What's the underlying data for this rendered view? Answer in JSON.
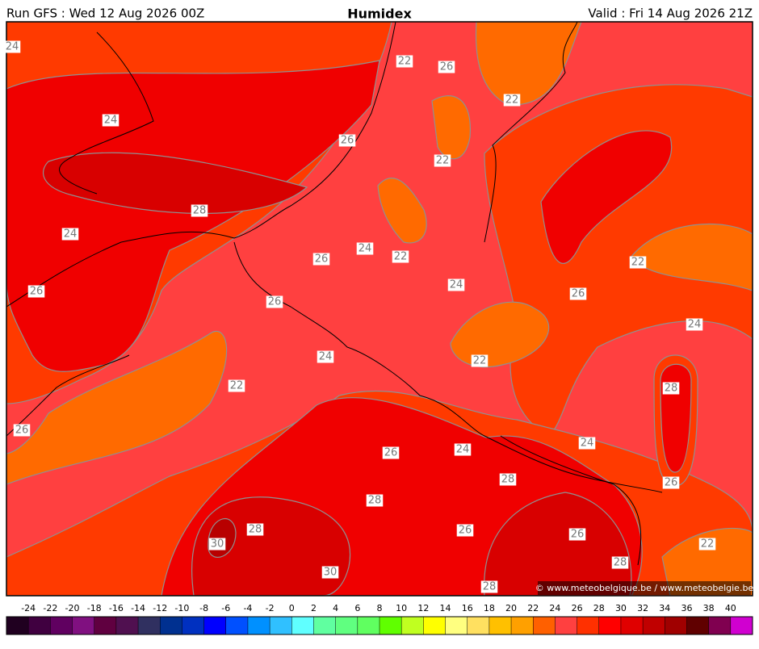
{
  "header": {
    "run": "Run GFS : Wed 12 Aug 2026 00Z",
    "title": "Humidex",
    "valid": "Valid : Fri 14 Aug 2026 21Z"
  },
  "contour_labels": [
    24,
    22,
    26,
    22,
    24,
    26,
    22,
    28,
    24,
    24,
    26,
    22,
    22,
    24,
    26,
    26,
    26,
    24,
    24,
    22,
    22,
    28,
    26,
    24,
    24,
    26,
    28,
    26,
    28,
    28,
    26,
    26,
    30,
    22,
    28,
    30,
    28
  ],
  "legend": {
    "ticks": [
      -24,
      -22,
      -20,
      -18,
      -16,
      -14,
      -12,
      -10,
      -8,
      -6,
      -4,
      -2,
      0,
      2,
      4,
      6,
      8,
      10,
      12,
      14,
      16,
      18,
      20,
      22,
      24,
      26,
      28,
      30,
      32,
      34,
      36,
      38,
      40
    ],
    "colors": [
      "#200020",
      "#400040",
      "#600060",
      "#801080",
      "#600040",
      "#501050",
      "#303060",
      "#003090",
      "#0030c0",
      "#0000ff",
      "#0050ff",
      "#0090ff",
      "#30c0ff",
      "#60ffff",
      "#60ffa0",
      "#60ff80",
      "#60ff60",
      "#60ff00",
      "#c0ff20",
      "#ffff00",
      "#ffff80",
      "#ffe060",
      "#ffc000",
      "#ffa000",
      "#ff6000",
      "#ff4040",
      "#ff3000",
      "#ff0000",
      "#e00000",
      "#c00000",
      "#a00000",
      "#600000",
      "#800050",
      "#d000d0"
    ]
  },
  "copyright": "© www.meteobelgique.be / www.meteobelgie.be"
}
